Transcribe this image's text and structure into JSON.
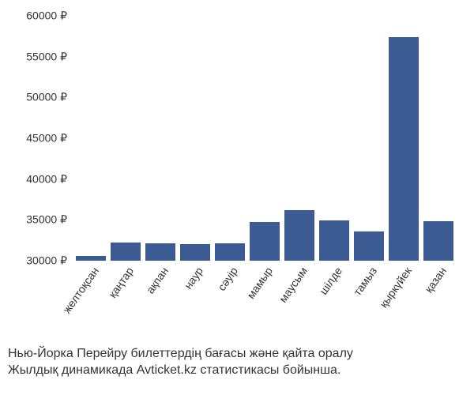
{
  "chart": {
    "type": "bar",
    "categories": [
      "желтоқсан",
      "қаңтар",
      "ақпан",
      "наур",
      "сәуір",
      "мамыр",
      "маусым",
      "шілде",
      "тамыз",
      "қыркүйек",
      "қазан"
    ],
    "values": [
      30600,
      32200,
      32100,
      32000,
      32100,
      34700,
      36200,
      34900,
      33600,
      57400,
      34800
    ],
    "ylim_min": 30000,
    "ylim_max": 60000,
    "ytick_step": 5000,
    "y_suffix": " ₽",
    "bar_color": "#3b5b92",
    "background_color": "#ffffff",
    "text_color": "#333333",
    "label_fontsize": 14,
    "caption_fontsize": 16,
    "x_label_rotation_deg": -55
  },
  "caption": {
    "line1": "Нью-Йорка Перейру билеттердің бағасы және қайта оралу",
    "line2": "Жылдық динамикада Avticket.kz статистикасы бойынша."
  }
}
